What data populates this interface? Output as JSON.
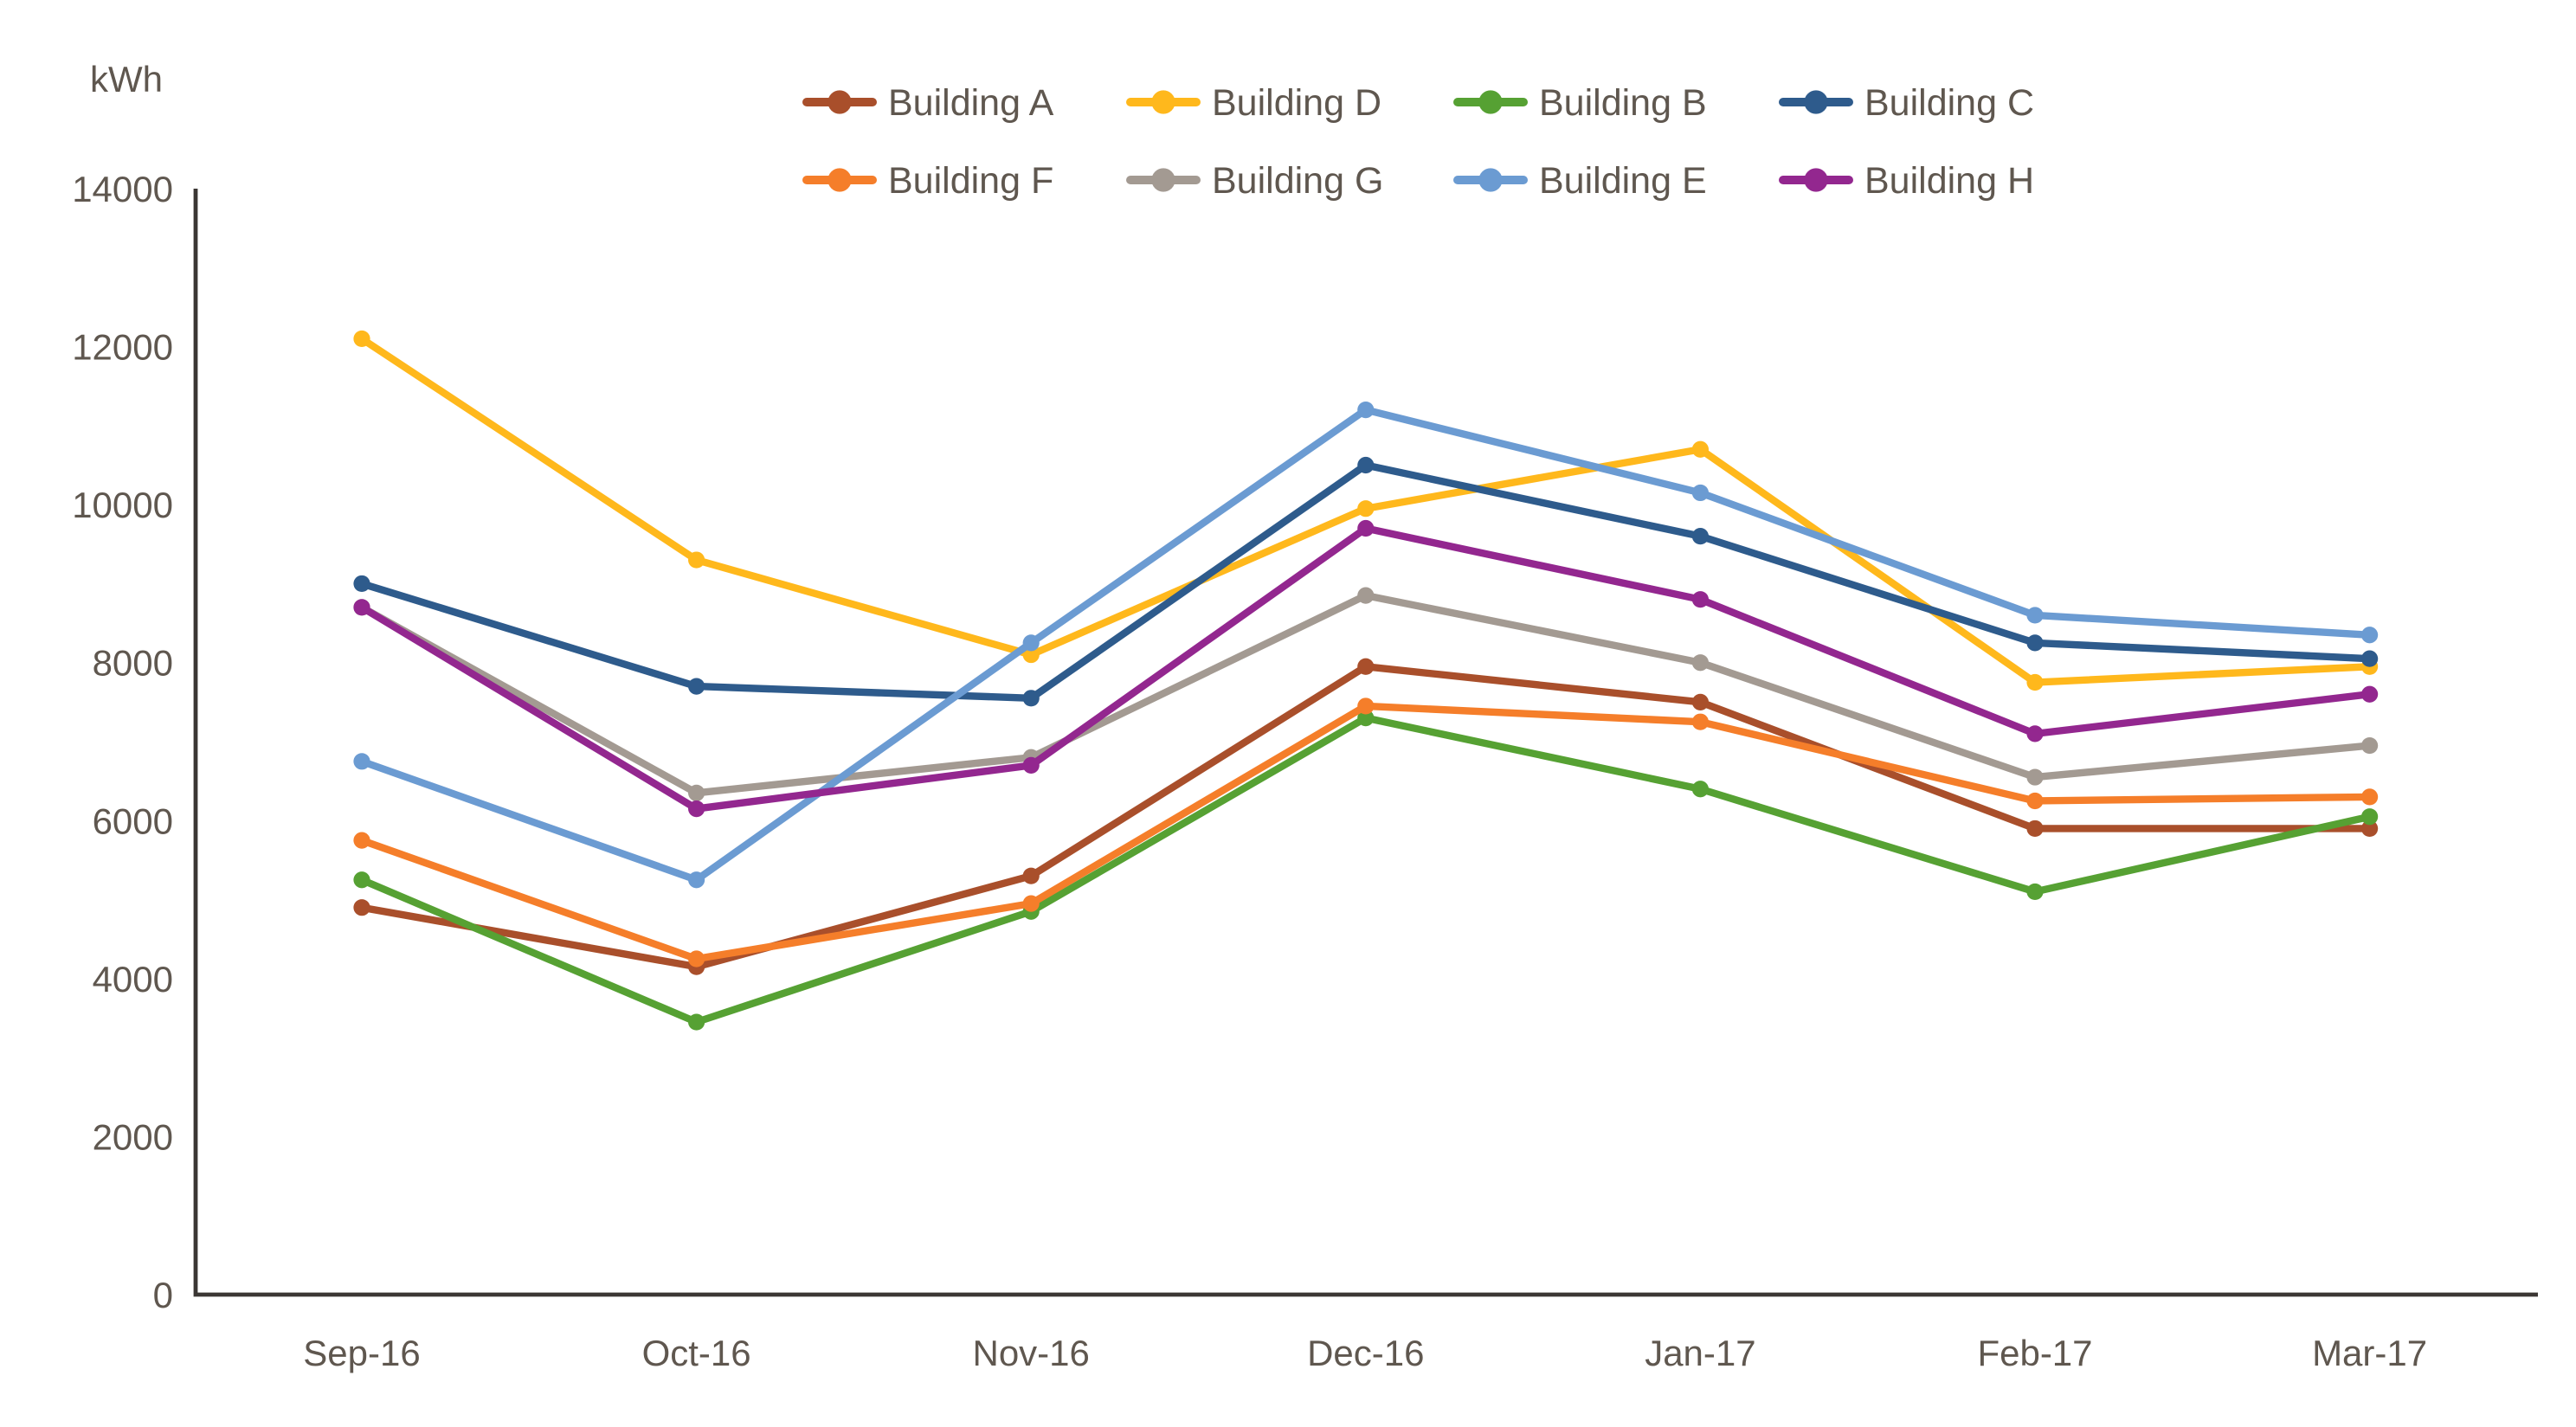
{
  "page": {
    "background": "#ffffff"
  },
  "chart": {
    "y_axis_title": "kWh",
    "axis_color": "#3b3734",
    "text_color": "#5f574f",
    "legend_rows": [
      [
        "Building A",
        "Building D",
        "Building B",
        "Building C"
      ],
      [
        "Building F",
        "Building G",
        "Building E",
        "Building H"
      ]
    ]
  },
  "chart_data": {
    "type": "line",
    "title": "",
    "xlabel": "",
    "ylabel": "kWh",
    "ylim": [
      0,
      14000
    ],
    "y_ticks": [
      0,
      2000,
      4000,
      6000,
      8000,
      10000,
      12000,
      14000
    ],
    "grid": false,
    "legend_position": "top",
    "marker": "circle",
    "categories": [
      "Sep-16",
      "Oct-16",
      "Nov-16",
      "Dec-16",
      "Jan-17",
      "Feb-17",
      "Mar-17"
    ],
    "series": [
      {
        "name": "Building A",
        "color": "#A94F2B",
        "values": [
          4900,
          4150,
          5300,
          7950,
          7500,
          5900,
          5900
        ]
      },
      {
        "name": "Building D",
        "color": "#FFB81C",
        "values": [
          12100,
          9300,
          8100,
          9950,
          10700,
          7750,
          7950
        ]
      },
      {
        "name": "Building B",
        "color": "#56A133",
        "values": [
          5250,
          3450,
          4850,
          7300,
          6400,
          5100,
          6050
        ]
      },
      {
        "name": "Building C",
        "color": "#2E5B8C",
        "values": [
          9000,
          7700,
          7550,
          10500,
          9600,
          8250,
          8050
        ]
      },
      {
        "name": "Building F",
        "color": "#F57E2A",
        "values": [
          5750,
          4250,
          4950,
          7450,
          7250,
          6250,
          6300
        ]
      },
      {
        "name": "Building G",
        "color": "#A39A92",
        "values": [
          8700,
          6350,
          6800,
          8850,
          8000,
          6550,
          6950
        ]
      },
      {
        "name": "Building E",
        "color": "#6B9BD2",
        "values": [
          6750,
          5250,
          8250,
          11200,
          10150,
          8600,
          8350
        ]
      },
      {
        "name": "Building H",
        "color": "#93278F",
        "values": [
          8700,
          6150,
          6700,
          9700,
          8800,
          7100,
          7600
        ]
      }
    ]
  }
}
